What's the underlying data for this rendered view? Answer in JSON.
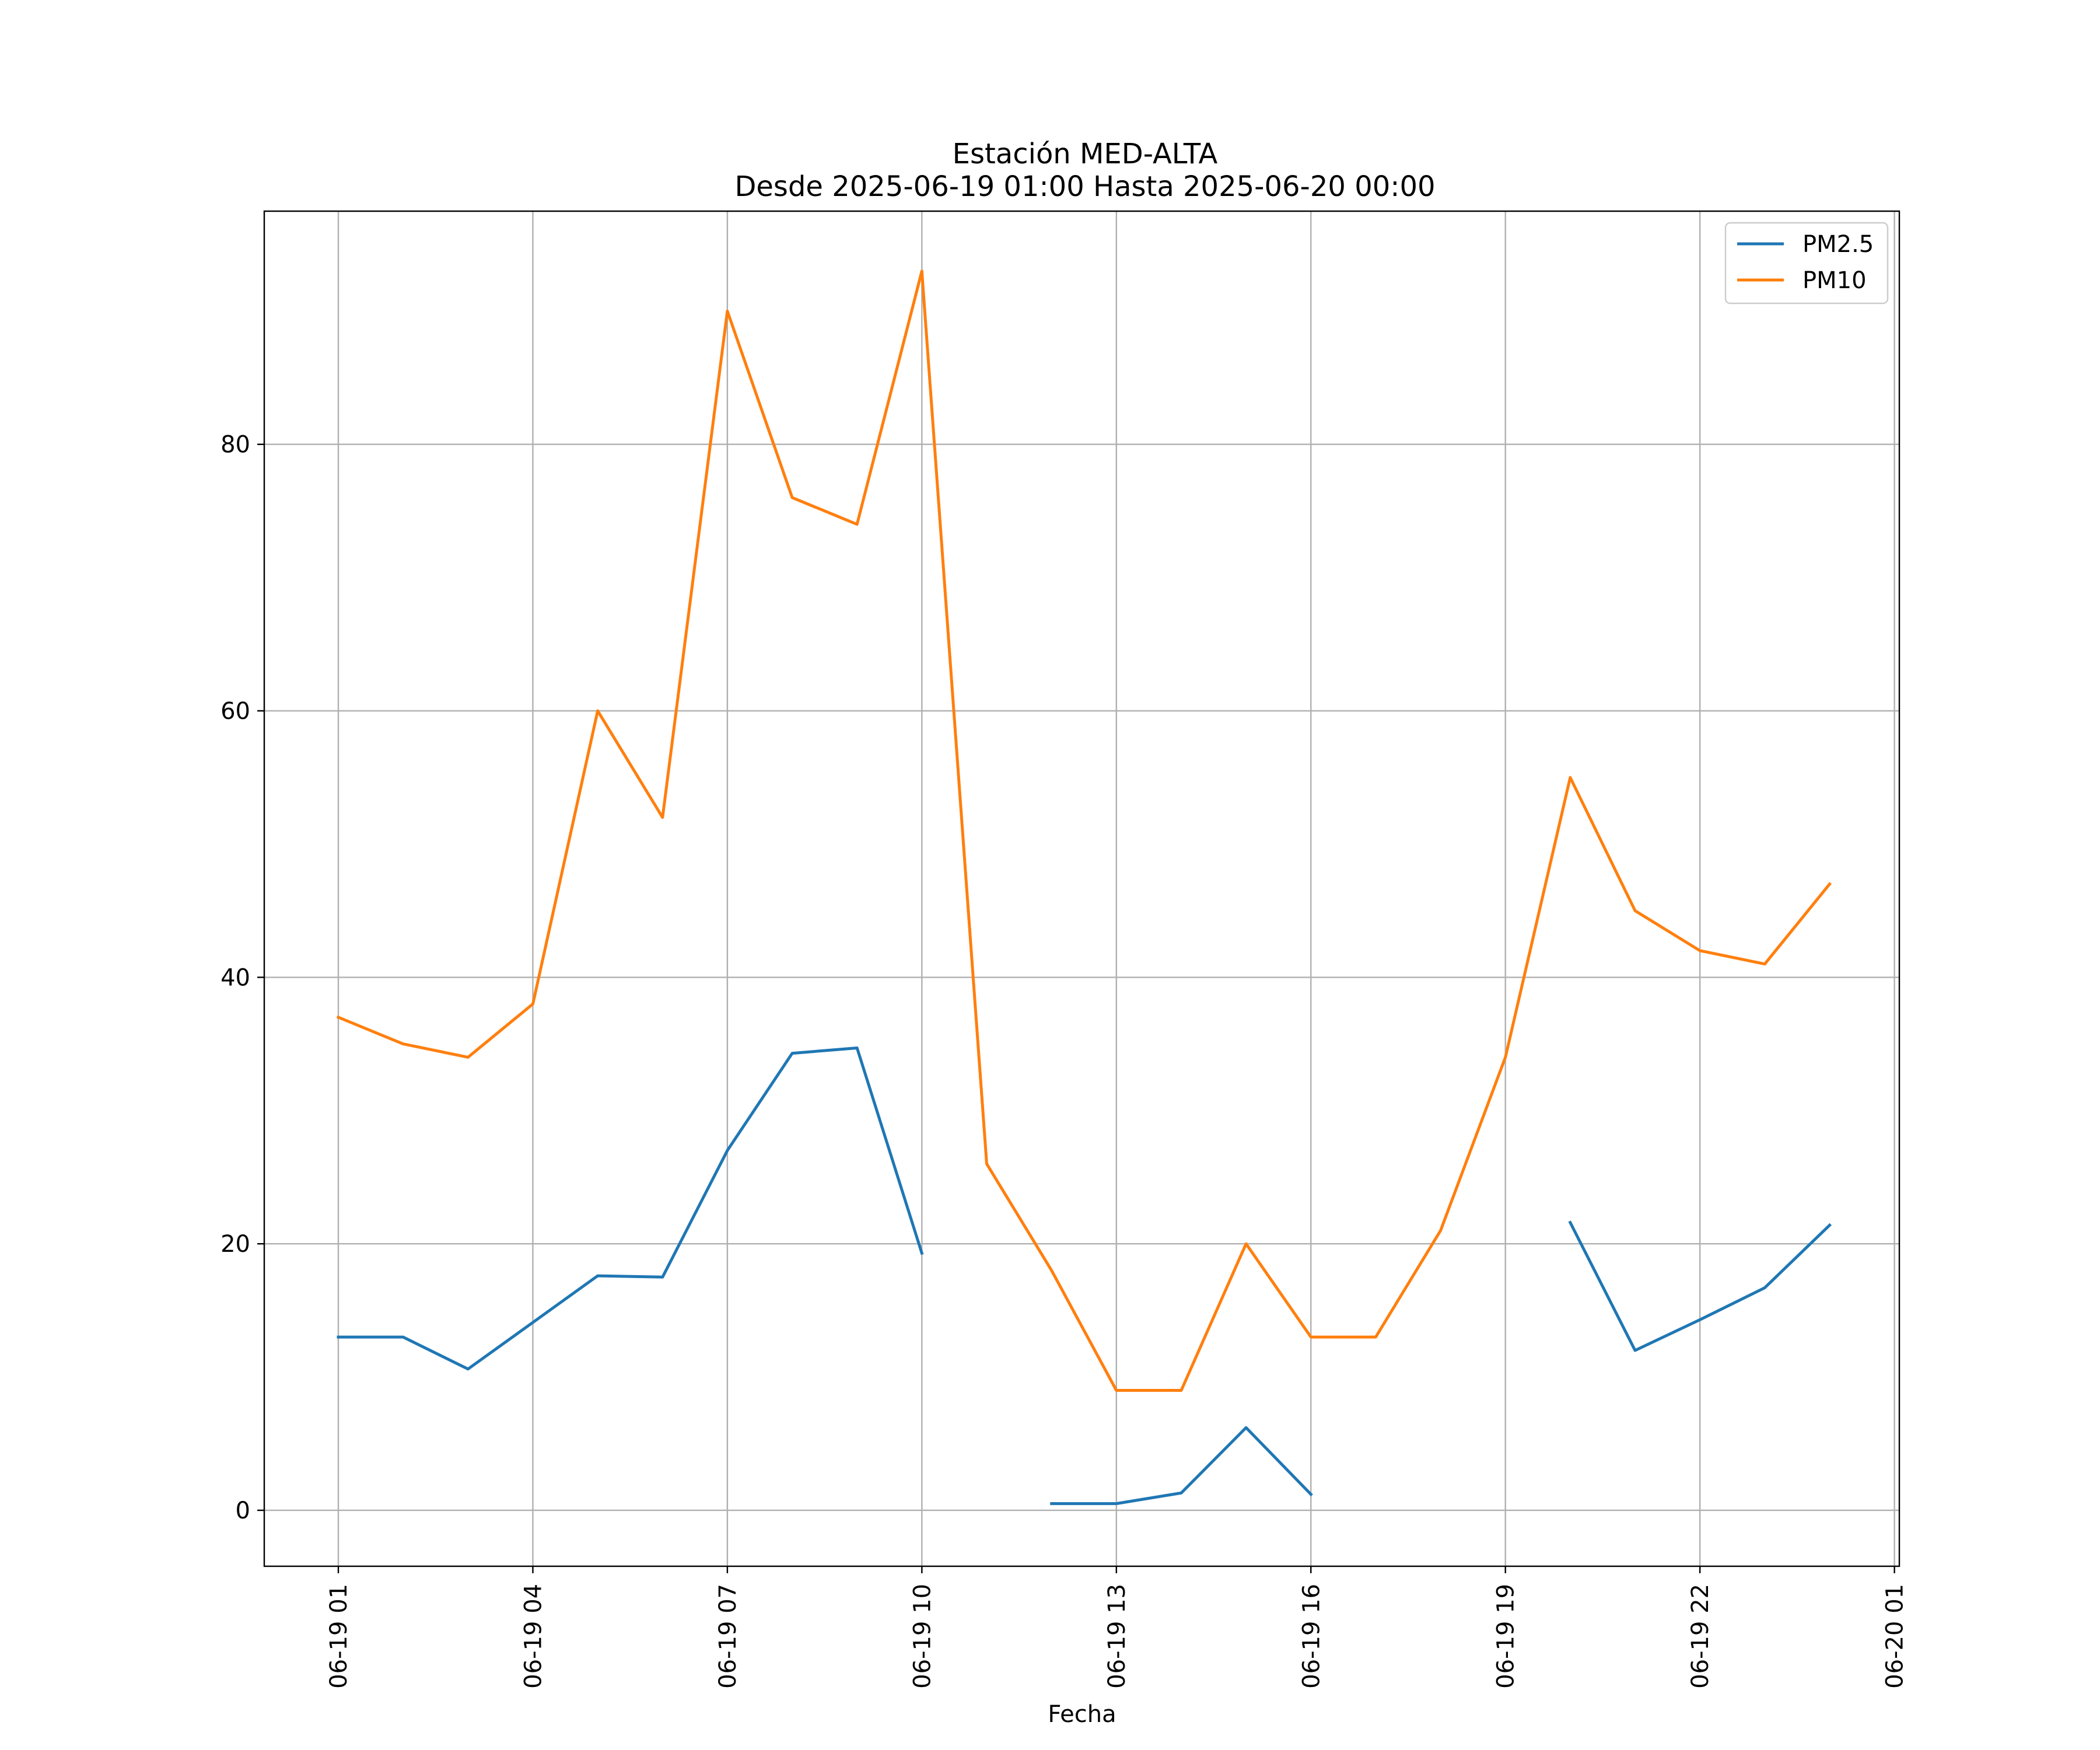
{
  "chart_data": {
    "type": "line",
    "title": "Estación MED-ALTA",
    "subtitle": "Desde 2025-06-19 01:00 Hasta 2025-06-20 00:00",
    "xlabel": "Fecha",
    "ylabel": "",
    "x": [
      "06-19 01",
      "06-19 02",
      "06-19 03",
      "06-19 04",
      "06-19 05",
      "06-19 06",
      "06-19 07",
      "06-19 08",
      "06-19 09",
      "06-19 10",
      "06-19 11",
      "06-19 12",
      "06-19 13",
      "06-19 14",
      "06-19 15",
      "06-19 16",
      "06-19 17",
      "06-19 18",
      "06-19 19",
      "06-19 20",
      "06-19 21",
      "06-19 22",
      "06-19 23",
      "06-20 00"
    ],
    "x_tick_labels": [
      "06-19 01",
      "06-19 04",
      "06-19 07",
      "06-19 10",
      "06-19 13",
      "06-19 16",
      "06-19 19",
      "06-19 22",
      "06-20 01"
    ],
    "xlim": [
      "06-19 00",
      "06-20 01"
    ],
    "y_ticks": [
      0,
      20,
      40,
      60,
      80
    ],
    "ylim": [
      -4.2,
      97.5
    ],
    "grid": true,
    "legend_position": "top-right",
    "series": [
      {
        "name": "PM2.5",
        "color": "#1f77b4",
        "values": [
          13,
          13,
          10.6,
          14.1,
          17.6,
          17.5,
          27,
          34.3,
          34.7,
          19.3,
          null,
          0.5,
          0.5,
          1.3,
          6.2,
          1.2,
          null,
          null,
          null,
          21.6,
          12,
          14.3,
          16.7,
          21.4
        ]
      },
      {
        "name": "PM10",
        "color": "#ff7f0e",
        "values": [
          37,
          35,
          34,
          38,
          60,
          52,
          90,
          76,
          74,
          93,
          26,
          18,
          9,
          9,
          20,
          13,
          13,
          21,
          34,
          55,
          45,
          42,
          41,
          47
        ]
      }
    ]
  }
}
